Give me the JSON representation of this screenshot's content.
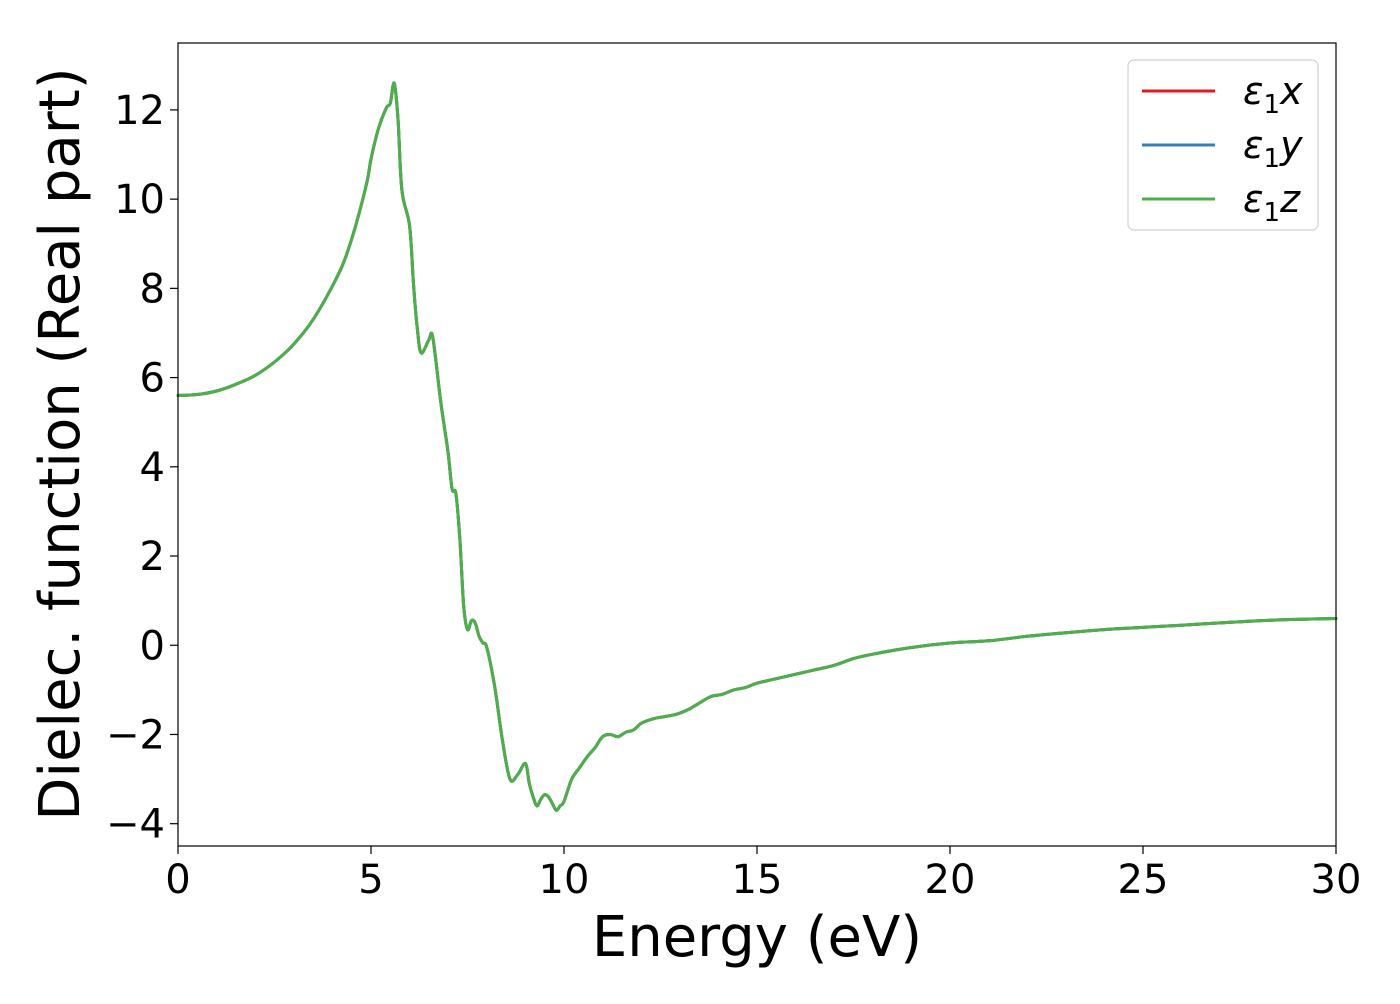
{
  "chart_data": {
    "type": "line",
    "xlabel": "Energy (eV)",
    "ylabel": "Dielec. function (Real part)",
    "xlim": [
      0,
      30
    ],
    "ylim": [
      -4.5,
      13.5
    ],
    "xticks": [
      0,
      5,
      10,
      15,
      20,
      25,
      30
    ],
    "yticks": [
      -4,
      -2,
      0,
      2,
      4,
      6,
      8,
      10,
      12
    ],
    "xtick_labels": [
      "0",
      "5",
      "10",
      "15",
      "20",
      "25",
      "30"
    ],
    "ytick_labels": [
      "−4",
      "−2",
      "0",
      "2",
      "4",
      "6",
      "8",
      "10",
      "12"
    ],
    "grid": false,
    "legend_position": "top-right",
    "series": [
      {
        "name": "ε1x",
        "legend": {
          "base": "ε",
          "sub": "1",
          "var": "x"
        },
        "color": "#e41a1c"
      },
      {
        "name": "ε1y",
        "legend": {
          "base": "ε",
          "sub": "1",
          "var": "y"
        },
        "color": "#377eb8"
      },
      {
        "name": "ε1z",
        "legend": {
          "base": "ε",
          "sub": "1",
          "var": "z"
        },
        "color": "#4daf4a"
      }
    ],
    "x": [
      0,
      0.5,
      1.0,
      1.5,
      2.0,
      2.5,
      3.0,
      3.5,
      4.0,
      4.3,
      4.6,
      4.9,
      5.0,
      5.2,
      5.4,
      5.5,
      5.6,
      5.7,
      5.8,
      6.0,
      6.1,
      6.2,
      6.3,
      6.5,
      6.6,
      6.8,
      6.9,
      7.0,
      7.1,
      7.2,
      7.3,
      7.4,
      7.5,
      7.6,
      7.7,
      7.8,
      7.9,
      8.0,
      8.2,
      8.4,
      8.6,
      8.8,
      9.0,
      9.1,
      9.2,
      9.3,
      9.4,
      9.5,
      9.6,
      9.7,
      9.8,
      9.9,
      10.0,
      10.2,
      10.4,
      10.6,
      10.8,
      11.0,
      11.2,
      11.4,
      11.6,
      11.8,
      12.0,
      12.3,
      12.6,
      12.9,
      13.2,
      13.5,
      13.8,
      14.1,
      14.4,
      14.7,
      15.0,
      15.5,
      16.0,
      16.5,
      17.0,
      17.5,
      18.0,
      19.0,
      20.0,
      21.0,
      22.0,
      23.0,
      24.0,
      25.0,
      26.0,
      27.0,
      28.0,
      29.0,
      30.0
    ],
    "y": [
      5.6,
      5.62,
      5.7,
      5.85,
      6.05,
      6.35,
      6.75,
      7.3,
      8.05,
      8.6,
      9.4,
      10.4,
      10.9,
      11.6,
      12.05,
      12.15,
      12.6,
      11.8,
      10.2,
      9.4,
      8.1,
      7.1,
      6.55,
      6.85,
      6.9,
      5.5,
      4.9,
      4.3,
      3.5,
      3.4,
      2.4,
      0.9,
      0.35,
      0.55,
      0.5,
      0.2,
      0.05,
      -0.05,
      -0.9,
      -2.1,
      -3.0,
      -2.9,
      -2.65,
      -3.1,
      -3.4,
      -3.6,
      -3.45,
      -3.35,
      -3.4,
      -3.55,
      -3.7,
      -3.6,
      -3.5,
      -3.0,
      -2.75,
      -2.5,
      -2.3,
      -2.05,
      -2.0,
      -2.05,
      -1.95,
      -1.9,
      -1.75,
      -1.65,
      -1.6,
      -1.55,
      -1.45,
      -1.3,
      -1.15,
      -1.1,
      -1.0,
      -0.95,
      -0.85,
      -0.75,
      -0.65,
      -0.55,
      -0.45,
      -0.3,
      -0.2,
      -0.05,
      0.05,
      0.1,
      0.2,
      0.28,
      0.35,
      0.4,
      0.45,
      0.5,
      0.55,
      0.58,
      0.6
    ]
  }
}
